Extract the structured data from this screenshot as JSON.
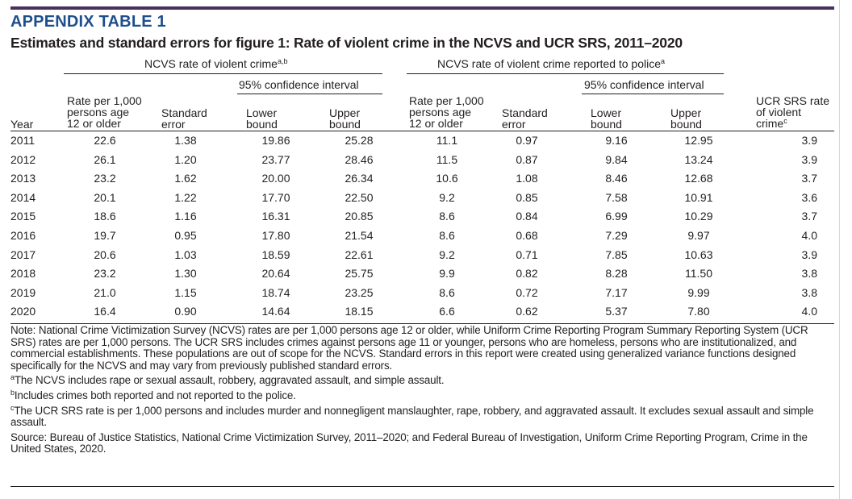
{
  "appendix_title": "APPENDIX TABLE 1",
  "table_title": "Estimates and standard errors for figure 1: Rate of violent crime in the NCVS and UCR SRS, 2011–2020",
  "headers": {
    "group_ncvs": "NCVS rate of violent crime",
    "group_ncvs_sup": "a,b",
    "group_reported": "NCVS rate of violent crime reported to police",
    "group_reported_sup": "a",
    "ci_label": "95% confidence interval",
    "year": "Year",
    "rate_line1": "Rate per 1,000",
    "rate_line2": "persons age",
    "rate_line3": "12 or older",
    "se_line1": "Standard",
    "se_line2": "error",
    "lower_line1": "Lower",
    "lower_line2": "bound",
    "upper_line1": "Upper",
    "upper_line2": "bound",
    "ucr_line1": "UCR SRS rate",
    "ucr_line2": "of violent",
    "ucr_line3": "crime",
    "ucr_sup": "c"
  },
  "rows": [
    {
      "year": "2011",
      "rate": "22.6",
      "se": "1.38",
      "lower": "19.86",
      "upper": "25.28",
      "rep_rate": "11.1",
      "rep_se": "0.97",
      "rep_lower": "9.16",
      "rep_upper": "12.95",
      "ucr": "3.9"
    },
    {
      "year": "2012",
      "rate": "26.1",
      "se": "1.20",
      "lower": "23.77",
      "upper": "28.46",
      "rep_rate": "11.5",
      "rep_se": "0.87",
      "rep_lower": "9.84",
      "rep_upper": "13.24",
      "ucr": "3.9"
    },
    {
      "year": "2013",
      "rate": "23.2",
      "se": "1.62",
      "lower": "20.00",
      "upper": "26.34",
      "rep_rate": "10.6",
      "rep_se": "1.08",
      "rep_lower": "8.46",
      "rep_upper": "12.68",
      "ucr": "3.7"
    },
    {
      "year": "2014",
      "rate": "20.1",
      "se": "1.22",
      "lower": "17.70",
      "upper": "22.50",
      "rep_rate": "9.2",
      "rep_se": "0.85",
      "rep_lower": "7.58",
      "rep_upper": "10.91",
      "ucr": "3.6"
    },
    {
      "year": "2015",
      "rate": "18.6",
      "se": "1.16",
      "lower": "16.31",
      "upper": "20.85",
      "rep_rate": "8.6",
      "rep_se": "0.84",
      "rep_lower": "6.99",
      "rep_upper": "10.29",
      "ucr": "3.7"
    },
    {
      "year": "2016",
      "rate": "19.7",
      "se": "0.95",
      "lower": "17.80",
      "upper": "21.54",
      "rep_rate": "8.6",
      "rep_se": "0.68",
      "rep_lower": "7.29",
      "rep_upper": "9.97",
      "ucr": "4.0"
    },
    {
      "year": "2017",
      "rate": "20.6",
      "se": "1.03",
      "lower": "18.59",
      "upper": "22.61",
      "rep_rate": "9.2",
      "rep_se": "0.71",
      "rep_lower": "7.85",
      "rep_upper": "10.63",
      "ucr": "3.9"
    },
    {
      "year": "2018",
      "rate": "23.2",
      "se": "1.30",
      "lower": "20.64",
      "upper": "25.75",
      "rep_rate": "9.9",
      "rep_se": "0.82",
      "rep_lower": "8.28",
      "rep_upper": "11.50",
      "ucr": "3.8"
    },
    {
      "year": "2019",
      "rate": "21.0",
      "se": "1.15",
      "lower": "18.74",
      "upper": "23.25",
      "rep_rate": "8.6",
      "rep_se": "0.72",
      "rep_lower": "7.17",
      "rep_upper": "9.99",
      "ucr": "3.8"
    },
    {
      "year": "2020",
      "rate": "16.4",
      "se": "0.90",
      "lower": "14.64",
      "upper": "18.15",
      "rep_rate": "6.6",
      "rep_se": "0.62",
      "rep_lower": "5.37",
      "rep_upper": "7.80",
      "ucr": "4.0"
    }
  ],
  "notes": {
    "note_main": "Note: National Crime Victimization Survey (NCVS) rates are per 1,000 persons age 12 or older, while Uniform Crime Reporting Program Summary Reporting System (UCR SRS) rates are per 1,000 persons. The UCR SRS includes crimes against persons age 11 or younger, persons who are homeless, persons who are institutionalized, and commercial establishments. These populations are out of scope for the NCVS. Standard errors in this report were created using generalized variance functions designed specifically for the NCVS and may vary from previously published standard errors.",
    "fn_a_mark": "a",
    "fn_a": "The NCVS includes rape or sexual assault, robbery, aggravated assault, and simple assault.",
    "fn_b_mark": "b",
    "fn_b": "Includes crimes both reported and not reported to the police.",
    "fn_c_mark": "c",
    "fn_c": "The UCR SRS rate is per 1,000 persons and includes murder and nonnegligent manslaughter, rape, robbery, and aggravated assault. It excludes sexual assault and simple assault.",
    "source": "Source: Bureau of Justice Statistics, National Crime Victimization Survey, 2011–2020; and Federal Bureau of Investigation, Uniform Crime Reporting Program, Crime in the United States, 2020."
  },
  "colors": {
    "top_rule": "#4b2e5a",
    "appendix_title": "#1f4e8c",
    "text": "#231f20"
  }
}
